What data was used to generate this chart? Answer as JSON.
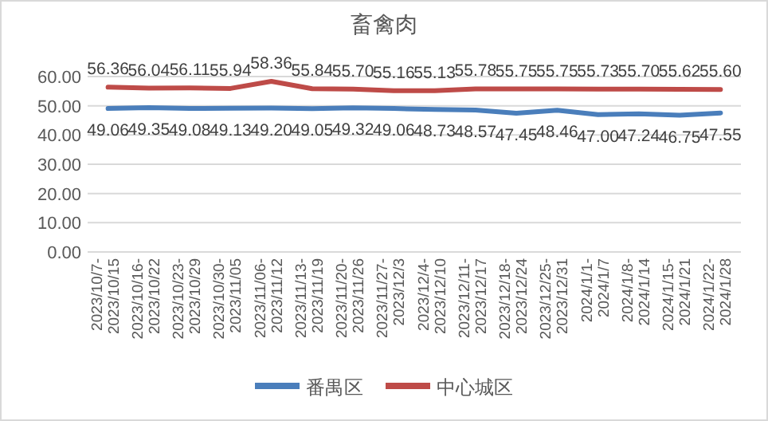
{
  "chart_data": {
    "type": "line",
    "title": "畜禽肉",
    "categories": [
      "2023/10/7-2023/10/15",
      "2023/10/16-2023/10/22",
      "2023/10/23-2023/10/29",
      "2023/10/30-2023/11/05",
      "2023/11/06-2023/11/12",
      "2023/11/13-2023/11/19",
      "2023/11/20-2023/11/26",
      "2023/11/27-2023/12/3",
      "2023/12/4-2023/12/10",
      "2023/12/11-2023/12/17",
      "2023/12/18-2023/12/24",
      "2023/12/25-2023/12/31",
      "2024/1/1-2024/1/7",
      "2024/1/8-2024/1/14",
      "2024/1/15-2024/1/21",
      "2024/1/22-2024/1/28"
    ],
    "series": [
      {
        "name": "番禺区",
        "color": "#4a7ebb",
        "values": [
          49.06,
          49.35,
          49.08,
          49.13,
          49.2,
          49.05,
          49.32,
          49.06,
          48.73,
          48.57,
          47.45,
          48.46,
          47.0,
          47.24,
          46.75,
          47.55
        ],
        "value_labels": [
          "49.06",
          "49.35",
          "49.08",
          "49.13",
          "49.20",
          "49.05",
          "49.32",
          "49.06",
          "48.73",
          "48.57",
          "47.45",
          "48.46",
          "47.00",
          "47.24",
          "46.75",
          "47.55"
        ]
      },
      {
        "name": "中心城区",
        "color": "#be4b48",
        "values": [
          56.36,
          56.04,
          56.11,
          55.94,
          58.36,
          55.84,
          55.7,
          55.16,
          55.13,
          55.78,
          55.75,
          55.75,
          55.73,
          55.7,
          55.62,
          55.6
        ],
        "value_labels": [
          "56.36",
          "56.04",
          "56.11",
          "55.94",
          "58.36",
          "55.84",
          "55.70",
          "55.16",
          "55.13",
          "55.78",
          "55.75",
          "55.75",
          "55.73",
          "55.70",
          "55.62",
          "55.60"
        ]
      }
    ],
    "ylim": [
      0,
      60
    ],
    "yticks": [
      {
        "value": 0,
        "label": "0.00"
      },
      {
        "value": 10,
        "label": "10.00"
      },
      {
        "value": 20,
        "label": "20.00"
      },
      {
        "value": 30,
        "label": "30.00"
      },
      {
        "value": 40,
        "label": "40.00"
      },
      {
        "value": 50,
        "label": "50.00"
      },
      {
        "value": 60,
        "label": "60.00"
      }
    ],
    "grid": "y",
    "legend": "bottom",
    "marker": "none",
    "line_style": "solid"
  }
}
